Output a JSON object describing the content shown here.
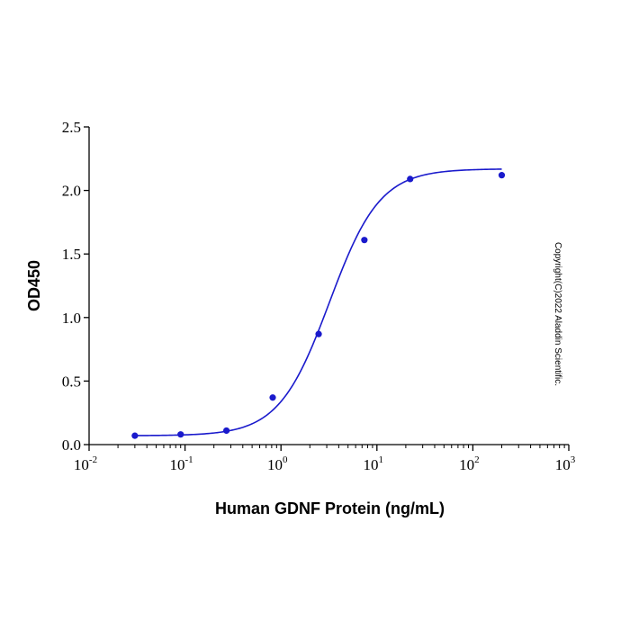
{
  "chart_data": {
    "type": "scatter",
    "x_scale": "log",
    "xlim": [
      0.01,
      1000
    ],
    "ylim": [
      0,
      2.5
    ],
    "xlabel": "Human GDNF Protein (ng/mL)",
    "ylabel": "OD450",
    "x_tick_base": "10",
    "x_tick_exponents": [
      "-2",
      "-1",
      "0",
      "1",
      "2",
      "3"
    ],
    "y_ticks": [
      "0.0",
      "0.5",
      "1.0",
      "1.5",
      "2.0",
      "2.5"
    ],
    "series": [
      {
        "points": [
          {
            "x": 0.03,
            "y": 0.07
          },
          {
            "x": 0.09,
            "y": 0.08
          },
          {
            "x": 0.27,
            "y": 0.11
          },
          {
            "x": 0.82,
            "y": 0.37
          },
          {
            "x": 2.47,
            "y": 0.87
          },
          {
            "x": 7.4,
            "y": 1.61
          },
          {
            "x": 22.2,
            "y": 2.09
          },
          {
            "x": 200,
            "y": 2.12
          }
        ],
        "fit": {
          "model": "4PL",
          "bottom": 0.07,
          "top": 2.17,
          "ec50": 3.2,
          "hill": 1.65
        }
      }
    ],
    "colors": {
      "series": "#1a1acc",
      "axes": "#000000"
    },
    "grid": false,
    "legend": "none"
  },
  "watermark": "Copyright(C)2022 Aladdin Scientific."
}
